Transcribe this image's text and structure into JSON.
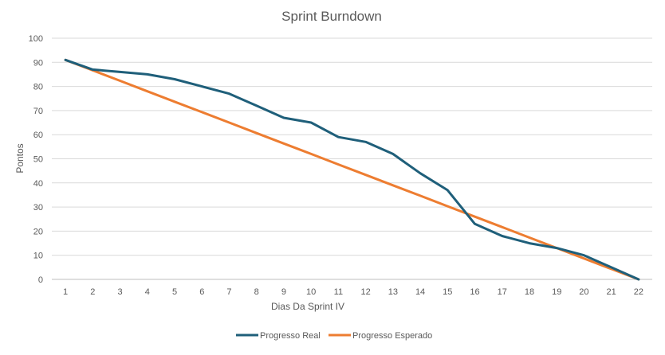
{
  "chart_data": {
    "type": "line",
    "title": "Sprint Burndown",
    "xlabel": "Dias Da Sprint IV",
    "ylabel": "Pontos",
    "ylim": [
      0,
      100
    ],
    "y_ticks": [
      0,
      10,
      20,
      30,
      40,
      50,
      60,
      70,
      80,
      90,
      100
    ],
    "grid": true,
    "legend_position": "bottom",
    "categories": [
      1,
      2,
      3,
      4,
      5,
      6,
      7,
      8,
      9,
      10,
      11,
      12,
      13,
      14,
      15,
      16,
      17,
      18,
      19,
      20,
      21,
      22
    ],
    "series": [
      {
        "name": "Progresso Real",
        "color": "#1f5f7a",
        "values": [
          91,
          87,
          86,
          85,
          83,
          80,
          77,
          72,
          67,
          65,
          59,
          57,
          52,
          44,
          37,
          23,
          18,
          15,
          13,
          10,
          5,
          0
        ]
      },
      {
        "name": "Progresso Esperado",
        "color": "#ed7d31",
        "values": [
          91,
          86.67,
          82.33,
          78,
          73.67,
          69.33,
          65,
          60.67,
          56.33,
          52,
          47.67,
          43.33,
          39,
          34.67,
          30.33,
          26,
          21.67,
          17.33,
          13,
          8.67,
          4.33,
          0
        ]
      }
    ]
  }
}
